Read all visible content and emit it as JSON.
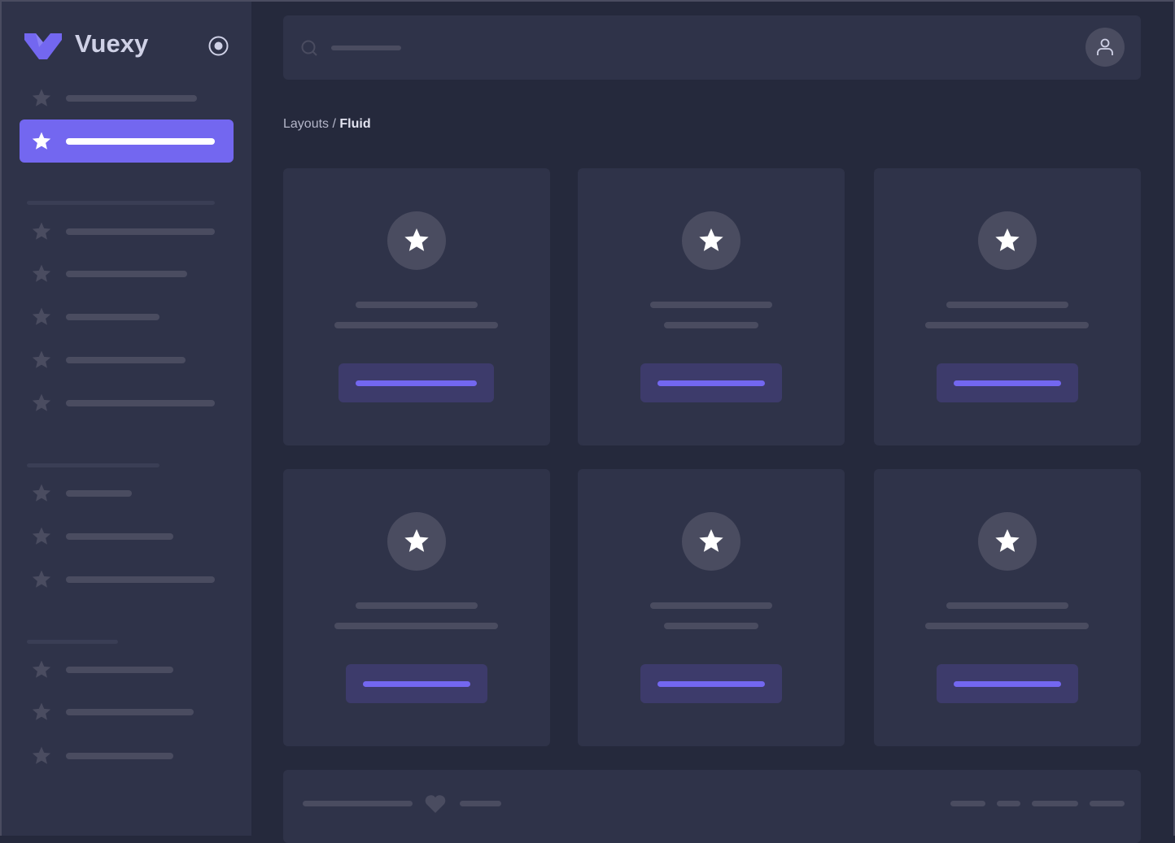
{
  "app": {
    "name": "Vuexy",
    "brand_color": "#7367f0",
    "background": "#25293c",
    "panel_color": "#2f3349",
    "placeholder_color": "#4a4c60"
  },
  "sidebar": {
    "toggle_icon": "radio-circle-icon",
    "item_icon": "star-icon",
    "active_index": 1
  },
  "topbar": {
    "search_icon": "search-icon",
    "avatar_icon": "user-icon"
  },
  "breadcrumb": {
    "parent": "Layouts",
    "separator": "/",
    "current": "Fluid"
  },
  "cards": {
    "count": 6,
    "icon": "star-icon"
  },
  "footer": {
    "icon": "heart-icon"
  }
}
